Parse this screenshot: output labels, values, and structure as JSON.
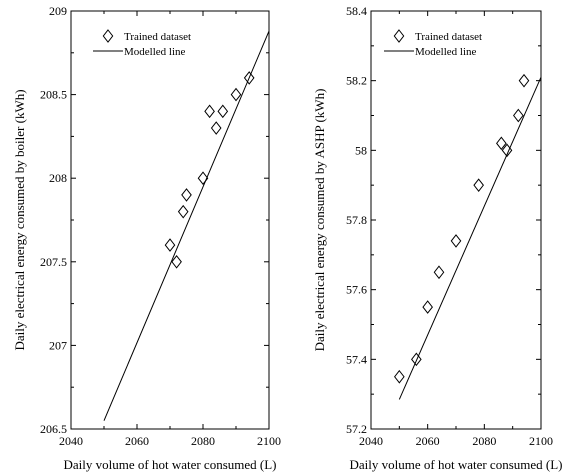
{
  "chart_data": [
    {
      "type": "scatter",
      "title": "",
      "xlabel": "Daily volume of hot water consumed (L)",
      "ylabel": "Daily electrical energy consumed by boiler (kWh)",
      "xlim": [
        2040,
        2100
      ],
      "ylim": [
        206.5,
        209
      ],
      "xticks": [
        2040,
        2060,
        2080,
        2100
      ],
      "yticks": [
        206.5,
        207,
        207.5,
        208,
        208.5,
        209
      ],
      "xtick_labels": [
        "2040",
        "2060",
        "2080",
        "2100"
      ],
      "ytick_labels": [
        "206.5",
        "207",
        "207.5",
        "208",
        "208.5",
        "209"
      ],
      "legend_position": "top",
      "grid": false,
      "series": [
        {
          "name": "Trained dataset",
          "kind": "scatter",
          "marker": "diamond",
          "x": [
            2070,
            2072,
            2074,
            2075,
            2080,
            2082,
            2084,
            2086,
            2090,
            2094
          ],
          "y": [
            207.6,
            207.5,
            207.8,
            207.9,
            208.0,
            208.4,
            208.3,
            208.4,
            208.5,
            208.6
          ]
        },
        {
          "name": "Modelled line",
          "kind": "line",
          "x": [
            2050,
            2100
          ],
          "y": [
            206.55,
            208.88
          ]
        }
      ]
    },
    {
      "type": "scatter",
      "title": "",
      "xlabel": "Daily volume of hot water consumed (L)",
      "ylabel": "Daily electrical energy consumed by ASHP (kWh)",
      "xlim": [
        2040,
        2100
      ],
      "ylim": [
        57.2,
        58.4
      ],
      "xticks": [
        2040,
        2060,
        2080,
        2100
      ],
      "yticks": [
        57.2,
        57.4,
        57.6,
        57.8,
        58.0,
        58.2,
        58.4
      ],
      "xtick_labels": [
        "2040",
        "2060",
        "2080",
        "2100"
      ],
      "ytick_labels": [
        "57.2",
        "57.4",
        "57.6",
        "57.8",
        "58",
        "58.2",
        "58.4"
      ],
      "legend_position": "top",
      "grid": false,
      "series": [
        {
          "name": "Trained dataset",
          "kind": "scatter",
          "marker": "diamond",
          "x": [
            2050,
            2056,
            2060,
            2064,
            2070,
            2078,
            2086,
            2088,
            2092,
            2094
          ],
          "y": [
            57.35,
            57.4,
            57.55,
            57.65,
            57.74,
            57.9,
            58.02,
            58.0,
            58.1,
            58.2
          ]
        },
        {
          "name": "Modelled line",
          "kind": "line",
          "x": [
            2050,
            2100
          ],
          "y": [
            57.285,
            58.21
          ]
        }
      ]
    }
  ]
}
